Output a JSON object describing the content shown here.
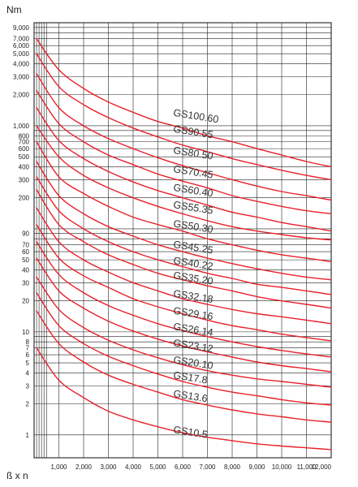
{
  "chart_data": {
    "type": "line",
    "ylabel": "Nm",
    "xlabel": "ß x n",
    "y_scale": "log",
    "ylim": [
      0.6,
      10000
    ],
    "xlim": [
      0,
      12000
    ],
    "grid": true,
    "legend": "none",
    "line_color": "#e8202a",
    "y_ticks": [
      {
        "value": 9000,
        "label": "9,000"
      },
      {
        "value": 7000,
        "label": "7,000"
      },
      {
        "value": 6000,
        "label": "6,000"
      },
      {
        "value": 5000,
        "label": "5,000"
      },
      {
        "value": 4000,
        "label": "4,000"
      },
      {
        "value": 3000,
        "label": "3,000"
      },
      {
        "value": 2000,
        "label": "2,000"
      },
      {
        "value": 1000,
        "label": "1,000"
      },
      {
        "value": 800,
        "label": "800"
      },
      {
        "value": 700,
        "label": "700"
      },
      {
        "value": 600,
        "label": "600"
      },
      {
        "value": 500,
        "label": "500"
      },
      {
        "value": 400,
        "label": "400"
      },
      {
        "value": 300,
        "label": "300"
      },
      {
        "value": 200,
        "label": "200"
      },
      {
        "value": 90,
        "label": "90"
      },
      {
        "value": 70,
        "label": "70"
      },
      {
        "value": 60,
        "label": "60"
      },
      {
        "value": 50,
        "label": "50"
      },
      {
        "value": 40,
        "label": "40"
      },
      {
        "value": 30,
        "label": "30"
      },
      {
        "value": 20,
        "label": "20"
      },
      {
        "value": 10,
        "label": "10"
      },
      {
        "value": 8,
        "label": "8"
      },
      {
        "value": 7,
        "label": "7"
      },
      {
        "value": 6,
        "label": "6"
      },
      {
        "value": 5,
        "label": "5"
      },
      {
        "value": 4,
        "label": "4"
      },
      {
        "value": 3,
        "label": "3"
      },
      {
        "value": 2,
        "label": "2"
      },
      {
        "value": 1,
        "label": "1"
      }
    ],
    "y_gridlines": [
      10000,
      9000,
      8000,
      7000,
      6000,
      5000,
      4000,
      3000,
      2000,
      1000,
      900,
      800,
      700,
      600,
      500,
      400,
      300,
      200,
      100,
      90,
      80,
      70,
      60,
      50,
      40,
      30,
      20,
      10,
      9,
      8,
      7,
      6,
      5,
      4,
      3,
      2,
      1
    ],
    "x_ticks": [
      {
        "value": 1000,
        "label": "1,000"
      },
      {
        "value": 2000,
        "label": "2,000"
      },
      {
        "value": 3000,
        "label": "3,000"
      },
      {
        "value": 4000,
        "label": "4,000"
      },
      {
        "value": 5000,
        "label": "5,000"
      },
      {
        "value": 6000,
        "label": "6,000"
      },
      {
        "value": 7000,
        "label": "7,000"
      },
      {
        "value": 8000,
        "label": "8,000"
      },
      {
        "value": 9000,
        "label": "9,000"
      },
      {
        "value": 10000,
        "label": "10,000"
      },
      {
        "value": 11000,
        "label": "11,000"
      },
      {
        "value": 12000,
        "label": "12,000"
      }
    ],
    "x_gridlines": [
      0,
      100,
      200,
      300,
      400,
      500,
      1000,
      2000,
      3000,
      4000,
      5000,
      6000,
      7000,
      8000,
      9000,
      10000,
      11000,
      12000
    ],
    "series": [
      {
        "name": "GS100.60",
        "label_at": [
          6000,
          1250
        ],
        "x": [
          100,
          1000,
          2000,
          3000,
          4000,
          5000,
          6000,
          7000,
          8000,
          9000,
          10000,
          11000,
          12000
        ],
        "y": [
          7000,
          3500,
          2300,
          1700,
          1350,
          1100,
          950,
          800,
          700,
          600,
          520,
          450,
          400
        ]
      },
      {
        "name": "GS90.55",
        "label_at": [
          6000,
          870
        ],
        "x": [
          100,
          1000,
          2000,
          3000,
          4000,
          5000,
          6000,
          7000,
          8000,
          9000,
          10000,
          11000,
          12000
        ],
        "y": [
          5000,
          2400,
          1600,
          1200,
          950,
          780,
          650,
          560,
          480,
          420,
          370,
          330,
          300
        ]
      },
      {
        "name": "GS80.50",
        "label_at": [
          6000,
          540
        ],
        "x": [
          100,
          1000,
          2000,
          3000,
          4000,
          5000,
          6000,
          7000,
          8000,
          9000,
          10000,
          11000,
          12000
        ],
        "y": [
          3200,
          1500,
          1000,
          750,
          600,
          490,
          410,
          350,
          300,
          260,
          230,
          210,
          190
        ]
      },
      {
        "name": "GS70.45",
        "label_at": [
          6000,
          355
        ],
        "x": [
          100,
          1000,
          2000,
          3000,
          4000,
          5000,
          6000,
          7000,
          8000,
          9000,
          10000,
          11000,
          12000
        ],
        "y": [
          2200,
          1050,
          700,
          520,
          420,
          340,
          290,
          250,
          210,
          185,
          165,
          150,
          140
        ]
      },
      {
        "name": "GS60.40",
        "label_at": [
          6000,
          235
        ],
        "x": [
          100,
          1000,
          2000,
          3000,
          4000,
          5000,
          6000,
          7000,
          8000,
          9000,
          10000,
          11000,
          12000
        ],
        "y": [
          1500,
          720,
          480,
          360,
          285,
          235,
          200,
          170,
          145,
          130,
          115,
          105,
          95
        ]
      },
      {
        "name": "GS55.35",
        "label_at": [
          6000,
          160
        ],
        "x": [
          100,
          1000,
          2000,
          3000,
          4000,
          5000,
          6000,
          7000,
          8000,
          9000,
          10000,
          11000,
          12000
        ],
        "y": [
          1000,
          500,
          330,
          250,
          200,
          165,
          140,
          120,
          105,
          95,
          88,
          82,
          78
        ]
      },
      {
        "name": "GS50.30",
        "label_at": [
          6000,
          105
        ],
        "x": [
          100,
          1000,
          2000,
          3000,
          4000,
          5000,
          6000,
          7000,
          8000,
          9000,
          10000,
          11000,
          12000
        ],
        "y": [
          700,
          320,
          220,
          165,
          130,
          110,
          95,
          80,
          70,
          62,
          56,
          52,
          48
        ]
      },
      {
        "name": "GS45.25",
        "label_at": [
          6000,
          66
        ],
        "x": [
          100,
          1000,
          2000,
          3000,
          4000,
          5000,
          6000,
          7000,
          8000,
          9000,
          10000,
          11000,
          12000
        ],
        "y": [
          450,
          210,
          140,
          105,
          85,
          70,
          60,
          52,
          46,
          41,
          37,
          34,
          32
        ]
      },
      {
        "name": "GS40.22",
        "label_at": [
          6000,
          46
        ],
        "x": [
          100,
          1000,
          2000,
          3000,
          4000,
          5000,
          6000,
          7000,
          8000,
          9000,
          10000,
          11000,
          12000
        ],
        "y": [
          320,
          150,
          100,
          75,
          60,
          50,
          43,
          37,
          33,
          29,
          27,
          25,
          23
        ]
      },
      {
        "name": "GS35.20",
        "label_at": [
          6000,
          33
        ],
        "x": [
          100,
          1000,
          2000,
          3000,
          4000,
          5000,
          6000,
          7000,
          8000,
          9000,
          10000,
          11000,
          12000
        ],
        "y": [
          240,
          110,
          75,
          56,
          45,
          37,
          32,
          28,
          25,
          22,
          20,
          18.5,
          17
        ]
      },
      {
        "name": "GS32.18",
        "label_at": [
          6000,
          22
        ],
        "x": [
          100,
          1000,
          2000,
          3000,
          4000,
          5000,
          6000,
          7000,
          8000,
          9000,
          10000,
          11000,
          12000
        ],
        "y": [
          160,
          75,
          50,
          38,
          30,
          25,
          21,
          18.5,
          16.5,
          15,
          14,
          13,
          12
        ]
      },
      {
        "name": "GS29.16",
        "label_at": [
          6000,
          15
        ],
        "x": [
          100,
          1000,
          2000,
          3000,
          4000,
          5000,
          6000,
          7000,
          8000,
          9000,
          10000,
          11000,
          12000
        ],
        "y": [
          110,
          52,
          35,
          27,
          21,
          17.5,
          15,
          13,
          11.5,
          10.5,
          9.5,
          8.8,
          8.2
        ]
      },
      {
        "name": "GS26.14",
        "label_at": [
          6000,
          10.5
        ],
        "x": [
          100,
          1000,
          2000,
          3000,
          4000,
          5000,
          6000,
          7000,
          8000,
          9000,
          10000,
          11000,
          12000
        ],
        "y": [
          75,
          36,
          24,
          18,
          14.5,
          12,
          10.3,
          9,
          8,
          7.2,
          6.6,
          6.1,
          5.7
        ]
      },
      {
        "name": "GS23.12",
        "label_at": [
          6000,
          7.3
        ],
        "x": [
          100,
          1000,
          2000,
          3000,
          4000,
          5000,
          6000,
          7000,
          8000,
          9000,
          10000,
          11000,
          12000
        ],
        "y": [
          52,
          25,
          17,
          12.7,
          10.2,
          8.5,
          7.3,
          6.4,
          5.7,
          5.1,
          4.7,
          4.4,
          4.1
        ]
      },
      {
        "name": "GS20.10",
        "label_at": [
          6000,
          5.0
        ],
        "x": [
          100,
          1000,
          2000,
          3000,
          4000,
          5000,
          6000,
          7000,
          8000,
          9000,
          10000,
          11000,
          12000
        ],
        "y": [
          34,
          16.5,
          11,
          8.3,
          6.7,
          5.6,
          4.8,
          4.2,
          3.8,
          3.5,
          3.3,
          3.1,
          2.9
        ]
      },
      {
        "name": "GS17.8",
        "label_at": [
          6000,
          3.55
        ],
        "x": [
          100,
          1000,
          2000,
          3000,
          4000,
          5000,
          6000,
          7000,
          8000,
          9000,
          10000,
          11000,
          12000
        ],
        "y": [
          24,
          11.5,
          7.7,
          5.8,
          4.7,
          3.9,
          3.3,
          2.9,
          2.6,
          2.4,
          2.2,
          2.05,
          1.95
        ]
      },
      {
        "name": "GS13.6",
        "label_at": [
          6000,
          2.35
        ],
        "x": [
          100,
          1000,
          2000,
          3000,
          4000,
          5000,
          6000,
          7000,
          8000,
          9000,
          10000,
          11000,
          12000
        ],
        "y": [
          16,
          7.7,
          5.1,
          3.8,
          3.1,
          2.6,
          2.2,
          1.95,
          1.75,
          1.6,
          1.5,
          1.4,
          1.33
        ]
      },
      {
        "name": "GS10.5",
        "label_at": [
          6000,
          1.05
        ],
        "x": [
          100,
          1000,
          2000,
          3000,
          4000,
          5000,
          6000,
          7000,
          8000,
          9000,
          10000,
          11000,
          12000
        ],
        "y": [
          7,
          3.4,
          2.3,
          1.7,
          1.4,
          1.2,
          1.05,
          0.95,
          0.88,
          0.82,
          0.78,
          0.75,
          0.72
        ]
      }
    ]
  }
}
